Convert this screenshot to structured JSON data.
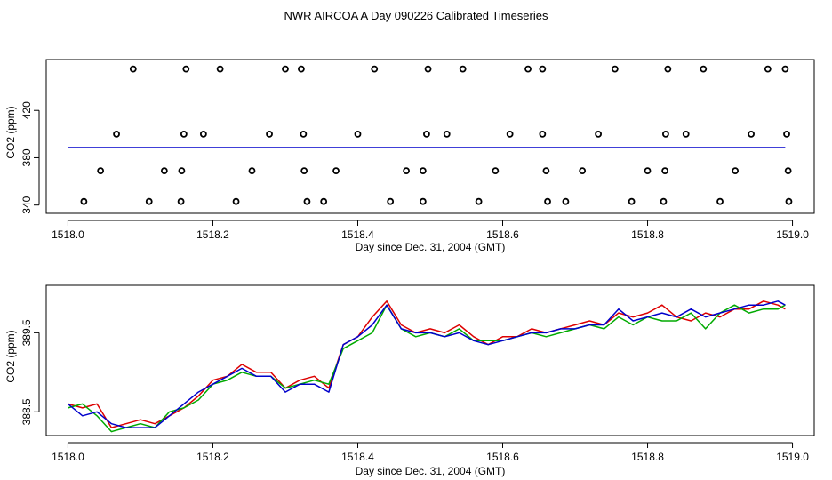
{
  "page_title": "NWR AIRCOA A  Day 090226  Calibrated Timeseries",
  "chart_data": [
    {
      "type": "scatter",
      "title": "",
      "xlabel": "Day since Dec. 31, 2004 (GMT)",
      "ylabel": "CO2 (ppm)",
      "xlim": [
        1517.97,
        1519.03
      ],
      "ylim": [
        333,
        463
      ],
      "xticks": [
        "1518.0",
        "1518.2",
        "1518.4",
        "1518.6",
        "1518.8",
        "1519.0"
      ],
      "xtick_values": [
        1518.0,
        1518.2,
        1518.4,
        1518.6,
        1518.8,
        1519.0
      ],
      "yticks": [
        "340",
        "380",
        "420"
      ],
      "ytick_values": [
        340,
        380,
        420
      ],
      "standards": [
        {
          "name": "",
          "y": 455,
          "x": [
            1518.09,
            1518.163,
            1518.21,
            1518.3,
            1518.322,
            1518.423,
            1518.497,
            1518.545,
            1518.635,
            1518.655,
            1518.755,
            1518.828,
            1518.877,
            1518.966,
            1518.99
          ]
        },
        {
          "name": "",
          "y": 400,
          "x": [
            1518.067,
            1518.16,
            1518.187,
            1518.278,
            1518.325,
            1518.4,
            1518.495,
            1518.523,
            1518.61,
            1518.655,
            1518.732,
            1518.825,
            1518.853,
            1518.943,
            1518.992
          ]
        },
        {
          "name": "",
          "y": 369,
          "x": [
            1518.045,
            1518.133,
            1518.157,
            1518.254,
            1518.326,
            1518.37,
            1518.467,
            1518.49,
            1518.59,
            1518.66,
            1518.71,
            1518.8,
            1518.824,
            1518.921,
            1518.994
          ]
        },
        {
          "name": "",
          "y": 343,
          "x": [
            1518.022,
            1518.112,
            1518.156,
            1518.232,
            1518.33,
            1518.353,
            1518.445,
            1518.49,
            1518.567,
            1518.662,
            1518.687,
            1518.778,
            1518.822,
            1518.9,
            1518.995
          ]
        }
      ],
      "line_y": 388.6,
      "line_xrange": [
        1518.0,
        1518.99
      ],
      "colors": {
        "line": "#0000cc",
        "markers": "#000000"
      }
    },
    {
      "type": "line",
      "title": "",
      "xlabel": "Day since Dec. 31, 2004 (GMT)",
      "ylabel": "CO2 (ppm)",
      "xlim": [
        1517.97,
        1519.03
      ],
      "ylim": [
        388.2,
        390.1
      ],
      "xticks": [
        "1518.0",
        "1518.2",
        "1518.4",
        "1518.6",
        "1518.8",
        "1519.0"
      ],
      "xtick_values": [
        1518.0,
        1518.2,
        1518.4,
        1518.6,
        1518.8,
        1519.0
      ],
      "yticks": [
        "388.5",
        "389.5"
      ],
      "ytick_values": [
        388.5,
        389.5
      ],
      "x": [
        1518.0,
        1518.02,
        1518.04,
        1518.06,
        1518.08,
        1518.1,
        1518.12,
        1518.14,
        1518.16,
        1518.18,
        1518.2,
        1518.22,
        1518.24,
        1518.26,
        1518.28,
        1518.3,
        1518.32,
        1518.34,
        1518.36,
        1518.38,
        1518.4,
        1518.42,
        1518.44,
        1518.46,
        1518.48,
        1518.5,
        1518.52,
        1518.54,
        1518.56,
        1518.58,
        1518.6,
        1518.62,
        1518.64,
        1518.66,
        1518.68,
        1518.7,
        1518.72,
        1518.74,
        1518.76,
        1518.78,
        1518.8,
        1518.82,
        1518.84,
        1518.86,
        1518.88,
        1518.9,
        1518.92,
        1518.94,
        1518.96,
        1518.98,
        1518.99
      ],
      "series": [
        {
          "name": "",
          "color": "#dd0000",
          "values": [
            388.6,
            388.55,
            388.6,
            388.3,
            388.35,
            388.4,
            388.35,
            388.45,
            388.55,
            388.7,
            388.9,
            388.95,
            389.1,
            389.0,
            389.0,
            388.8,
            388.9,
            388.95,
            388.8,
            389.35,
            389.45,
            389.7,
            389.9,
            389.6,
            389.5,
            389.55,
            389.5,
            389.6,
            389.45,
            389.35,
            389.45,
            389.45,
            389.55,
            389.5,
            389.55,
            389.6,
            389.65,
            389.6,
            389.75,
            389.7,
            389.75,
            389.85,
            389.7,
            389.65,
            389.75,
            389.7,
            389.8,
            389.8,
            389.9,
            389.85,
            389.8
          ]
        },
        {
          "name": "",
          "color": "#00aa00",
          "values": [
            388.55,
            388.6,
            388.45,
            388.25,
            388.3,
            388.35,
            388.3,
            388.5,
            388.55,
            388.65,
            388.85,
            388.9,
            389.0,
            388.95,
            388.95,
            388.8,
            388.85,
            388.9,
            388.85,
            389.3,
            389.4,
            389.5,
            389.85,
            389.55,
            389.45,
            389.5,
            389.45,
            389.55,
            389.4,
            389.4,
            389.4,
            389.45,
            389.5,
            389.45,
            389.5,
            389.55,
            389.6,
            389.55,
            389.7,
            389.6,
            389.7,
            389.65,
            389.65,
            389.75,
            389.55,
            389.75,
            389.85,
            389.75,
            389.8,
            389.8,
            389.85
          ]
        },
        {
          "name": "",
          "color": "#0000cc",
          "values": [
            388.6,
            388.45,
            388.5,
            388.35,
            388.3,
            388.3,
            388.3,
            388.45,
            388.6,
            388.75,
            388.85,
            388.95,
            389.05,
            388.95,
            388.95,
            388.75,
            388.85,
            388.85,
            388.75,
            389.35,
            389.45,
            389.6,
            389.85,
            389.55,
            389.5,
            389.5,
            389.45,
            389.5,
            389.4,
            389.35,
            389.4,
            389.45,
            389.5,
            389.5,
            389.55,
            389.55,
            389.6,
            389.6,
            389.8,
            389.65,
            389.7,
            389.75,
            389.7,
            389.8,
            389.7,
            389.75,
            389.8,
            389.85,
            389.85,
            389.9,
            389.85
          ]
        }
      ]
    }
  ]
}
